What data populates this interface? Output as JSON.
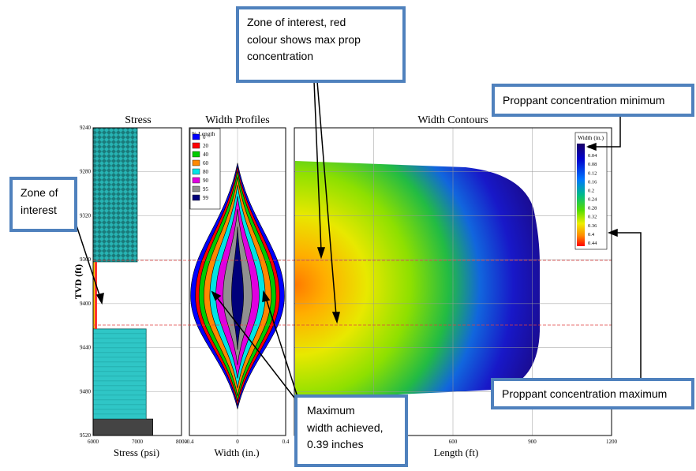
{
  "panels": {
    "stress": {
      "title": "Stress",
      "xlabel": "Stress (psi)",
      "ylabel": "TVD (ft)",
      "xticks": [
        "6000",
        "7000",
        "8000"
      ],
      "yticks": [
        "9240",
        "9280",
        "9320",
        "9360",
        "9400",
        "9440",
        "9480",
        "9520"
      ]
    },
    "width_profiles": {
      "title": "Width Profiles",
      "xlabel": "Width (in.)",
      "xticks": [
        "-0.4",
        "0",
        "0.4"
      ],
      "legend_title": "% Length",
      "legend": [
        {
          "label": "0",
          "color": "#0000ff"
        },
        {
          "label": "20",
          "color": "#ff0000"
        },
        {
          "label": "40",
          "color": "#00cc00"
        },
        {
          "label": "60",
          "color": "#ff8800"
        },
        {
          "label": "80",
          "color": "#00e5e5"
        },
        {
          "label": "90",
          "color": "#e000e0"
        },
        {
          "label": "95",
          "color": "#909090"
        },
        {
          "label": "99",
          "color": "#00007a"
        }
      ]
    },
    "width_contours": {
      "title": "Width Contours",
      "xlabel": "Length (ft)",
      "xticks": [
        "600",
        "900",
        "1200"
      ],
      "colorbar_title": "Width (in.)",
      "colorbar_ticks": [
        "0",
        "0.04",
        "0.08",
        "0.12",
        "0.16",
        "0.2",
        "0.24",
        "0.28",
        "0.32",
        "0.36",
        "0.4",
        "0.44"
      ]
    }
  },
  "callouts": {
    "zone_red": [
      "Zone of interest, red",
      "colour shows max prop",
      "concentration"
    ],
    "prop_min": [
      "Proppant concentration minimum"
    ],
    "zone": [
      "Zone of",
      "interest"
    ],
    "prop_max": [
      "Proppant concentration maximum"
    ],
    "max_width": [
      "Maximum",
      "width achieved,",
      "0.39 inches"
    ]
  },
  "chart_data": [
    {
      "type": "bar",
      "title": "Stress",
      "xlabel": "Stress (psi)",
      "ylabel": "TVD (ft)",
      "xlim": [
        6000,
        8000
      ],
      "ylim": [
        9240,
        9520
      ],
      "layers": [
        {
          "top": 9240,
          "bottom": 9362,
          "stress": 7000
        },
        {
          "top": 9362,
          "bottom": 9423,
          "stress": 6050
        },
        {
          "top": 9423,
          "bottom": 9505,
          "stress": 7200
        },
        {
          "top": 9505,
          "bottom": 9520,
          "stress": 7350
        }
      ],
      "zone_of_interest": [
        9362,
        9423
      ]
    },
    {
      "type": "area",
      "title": "Width Profiles",
      "xlabel": "Width (in.)",
      "xlim": [
        -0.4,
        0.4
      ],
      "ylim": [
        9240,
        9520
      ],
      "series": [
        {
          "name": "0",
          "tvd_top": 9272,
          "tvd_bottom": 9496,
          "max_width": 0.39
        },
        {
          "name": "20",
          "tvd_top": 9275,
          "tvd_bottom": 9493,
          "max_width": 0.35
        },
        {
          "name": "40",
          "tvd_top": 9279,
          "tvd_bottom": 9489,
          "max_width": 0.32
        },
        {
          "name": "60",
          "tvd_top": 9285,
          "tvd_bottom": 9484,
          "max_width": 0.28
        },
        {
          "name": "80",
          "tvd_top": 9292,
          "tvd_bottom": 9477,
          "max_width": 0.23
        },
        {
          "name": "90",
          "tvd_top": 9302,
          "tvd_bottom": 9468,
          "max_width": 0.18
        },
        {
          "name": "95",
          "tvd_top": 9314,
          "tvd_bottom": 9456,
          "max_width": 0.12
        },
        {
          "name": "99",
          "tvd_top": 9330,
          "tvd_bottom": 9442,
          "max_width": 0.05
        }
      ]
    },
    {
      "type": "heatmap",
      "title": "Width Contours",
      "xlabel": "Length (ft)",
      "xlim": [
        0,
        1200
      ],
      "ylim": [
        9240,
        9520
      ],
      "fracture_half_length": 920,
      "fracture_top": 9272,
      "fracture_bottom": 9496,
      "max_width_center": 9393,
      "colorbar_range": [
        0,
        0.44
      ]
    }
  ]
}
